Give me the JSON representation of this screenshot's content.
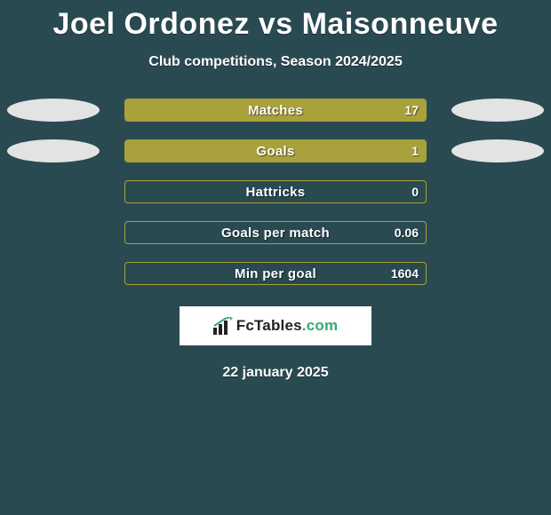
{
  "background_color": "#2a4a52",
  "title": "Joel Ordonez vs Maisonneuve",
  "title_fontsize": 34,
  "subtitle": "Club competitions, Season 2024/2025",
  "subtitle_fontsize": 16,
  "bar_color": "#a9a13b",
  "ellipse_color": "#e3e3e3",
  "stats": [
    {
      "label": "Matches",
      "value": "17",
      "fill_pct": 100,
      "left_ellipse": true,
      "right_ellipse": true
    },
    {
      "label": "Goals",
      "value": "1",
      "fill_pct": 100,
      "left_ellipse": true,
      "right_ellipse": true
    },
    {
      "label": "Hattricks",
      "value": "0",
      "fill_pct": 0,
      "left_ellipse": false,
      "right_ellipse": false
    },
    {
      "label": "Goals per match",
      "value": "0.06",
      "fill_pct": 0,
      "left_ellipse": false,
      "right_ellipse": false
    },
    {
      "label": "Min per goal",
      "value": "1604",
      "fill_pct": 0,
      "left_ellipse": false,
      "right_ellipse": false
    }
  ],
  "logo": {
    "text_main": "FcTables",
    "text_suffix": ".com"
  },
  "date": "22 january 2025"
}
